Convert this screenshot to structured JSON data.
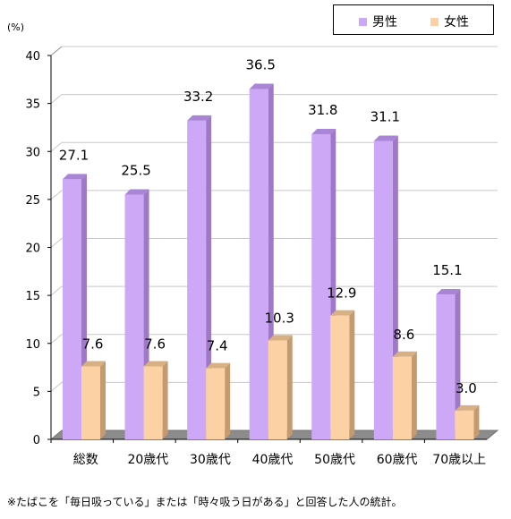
{
  "chart_data": {
    "type": "bar",
    "unit_label": "(%)",
    "categories": [
      "総数",
      "20歳代",
      "30歳代",
      "40歳代",
      "50歳代",
      "60歳代",
      "70歳以上"
    ],
    "series": [
      {
        "name": "男性",
        "values": [
          27.1,
          25.5,
          33.2,
          36.5,
          31.8,
          31.1,
          15.1
        ],
        "color": "#cca8f7",
        "side_color": "#9f78c8",
        "top_color": "#a985d6"
      },
      {
        "name": "女性",
        "values": [
          7.6,
          7.6,
          7.4,
          10.3,
          12.9,
          8.6,
          3.0
        ],
        "color": "#fcd2a4",
        "side_color": "#c49a6e",
        "top_color": "#d7b084"
      }
    ],
    "ylim": [
      0,
      40
    ],
    "yticks": [
      0,
      5,
      10,
      15,
      20,
      25,
      30,
      35,
      40
    ],
    "grid": true,
    "legend": "top-right",
    "footnote": "※たばこを「毎日吸っている」または「時々吸う日がある」と回答した人の統計。"
  }
}
